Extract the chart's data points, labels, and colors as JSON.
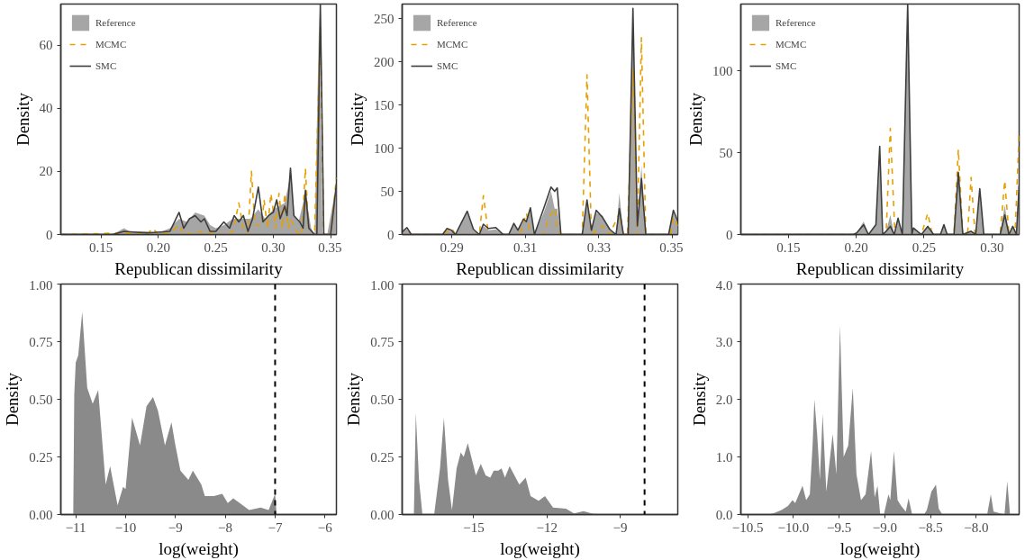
{
  "chart_data": [
    {
      "type": "line",
      "xlabel": "Republican dissimilarity",
      "ylabel": "Density",
      "legend": "top left",
      "xlim": [
        0.115,
        0.355
      ],
      "ylim": [
        0,
        73
      ],
      "xticks": [
        0.15,
        {
          "value": 0.2,
          "label": "0.20"
        },
        0.25,
        {
          "value": 0.3,
          "label": "0.30"
        },
        0.35
      ],
      "yticks": [
        0,
        20,
        40,
        60
      ],
      "series": [
        {
          "name": "Reference",
          "type": "area",
          "color": "#a6a6a6",
          "x": [
            0.115,
            0.16,
            0.17,
            0.175,
            0.19,
            0.2,
            0.21,
            0.218,
            0.225,
            0.232,
            0.24,
            0.245,
            0.25,
            0.257,
            0.265,
            0.27,
            0.28,
            0.287,
            0.293,
            0.3,
            0.305,
            0.31,
            0.315,
            0.318,
            0.322,
            0.328,
            0.333,
            0.336,
            0.34,
            0.343,
            0.347,
            0.352,
            0.355
          ],
          "values": [
            0,
            0,
            2,
            1,
            1,
            0.5,
            2,
            5,
            4,
            7,
            6,
            3,
            2,
            3,
            5,
            5,
            5,
            8,
            5,
            8,
            9,
            10,
            19,
            6,
            4,
            13,
            2,
            0,
            70,
            0,
            0,
            10,
            15
          ]
        },
        {
          "name": "MCMC",
          "type": "line",
          "line_style": "dashed",
          "color": "#e6a000",
          "x": [
            0.115,
            0.17,
            0.19,
            0.195,
            0.2,
            0.21,
            0.218,
            0.222,
            0.24,
            0.255,
            0.265,
            0.27,
            0.274,
            0.278,
            0.281,
            0.284,
            0.29,
            0.292,
            0.295,
            0.298,
            0.302,
            0.305,
            0.308,
            0.31,
            0.313,
            0.315,
            0.32,
            0.325,
            0.328,
            0.331,
            0.336,
            0.341,
            0.344,
            0.35,
            0.355
          ],
          "values": [
            0,
            0.5,
            0,
            2,
            0,
            0.5,
            3,
            0,
            1,
            0,
            1,
            10,
            2,
            0,
            20,
            3,
            3,
            11,
            2,
            13,
            2,
            13,
            2,
            13,
            2,
            5,
            1,
            0,
            21,
            0,
            0,
            66,
            0,
            0,
            18
          ]
        },
        {
          "name": "SMC",
          "type": "line",
          "line_style": "solid",
          "color": "#3d3d3d",
          "x": [
            0.115,
            0.16,
            0.17,
            0.19,
            0.21,
            0.218,
            0.222,
            0.227,
            0.232,
            0.237,
            0.24,
            0.245,
            0.25,
            0.257,
            0.262,
            0.266,
            0.27,
            0.274,
            0.278,
            0.282,
            0.287,
            0.291,
            0.296,
            0.3,
            0.303,
            0.306,
            0.31,
            0.312,
            0.315,
            0.318,
            0.323,
            0.326,
            0.328,
            0.331,
            0.336,
            0.338,
            0.341,
            0.344,
            0.35,
            0.355
          ],
          "values": [
            0,
            0,
            1,
            0.5,
            1,
            7,
            2,
            5,
            6,
            4,
            5,
            1,
            1,
            4,
            2,
            6,
            4,
            6,
            1,
            5,
            15,
            4,
            6,
            7,
            11,
            5,
            9,
            6,
            21,
            6,
            4,
            2,
            14,
            2,
            0,
            0,
            73,
            0,
            0,
            16
          ]
        }
      ]
    },
    {
      "type": "line",
      "xlabel": "Republican dissimilarity",
      "ylabel": "Density",
      "legend": "top left",
      "xlim": [
        0.2765,
        0.3515
      ],
      "ylim": [
        0,
        267
      ],
      "xticks": [
        0.29,
        0.31,
        0.33,
        0.35
      ],
      "yticks": [
        0,
        50,
        100,
        150,
        200,
        250
      ],
      "series": [
        {
          "name": "Reference",
          "type": "area",
          "color": "#a6a6a6",
          "x": [
            0.2765,
            0.2778,
            0.279,
            0.2875,
            0.2887,
            0.2899,
            0.291,
            0.2942,
            0.2959,
            0.2975,
            0.2986,
            0.3,
            0.302,
            0.304,
            0.3055,
            0.3069,
            0.308,
            0.3095,
            0.3103,
            0.3114,
            0.3125,
            0.315,
            0.317,
            0.318,
            0.3187,
            0.3197,
            0.3255,
            0.3268,
            0.328,
            0.3293,
            0.331,
            0.333,
            0.3347,
            0.3356,
            0.3367,
            0.338,
            0.3393,
            0.3405,
            0.3416,
            0.3428,
            0.349,
            0.3503,
            0.3515
          ],
          "values": [
            3,
            6,
            0,
            0,
            5,
            4,
            0,
            25,
            5,
            0,
            10,
            5,
            6,
            0,
            0,
            12,
            5,
            16,
            15,
            28,
            0,
            25,
            50,
            30,
            30,
            0,
            0,
            35,
            5,
            25,
            22,
            5,
            0,
            48,
            0,
            0,
            250,
            10,
            80,
            0,
            0,
            25,
            12
          ]
        },
        {
          "name": "MCMC",
          "type": "line",
          "line_style": "dashed",
          "color": "#e6a000",
          "x": [
            0.2765,
            0.2875,
            0.2899,
            0.291,
            0.2975,
            0.2986,
            0.3,
            0.3085,
            0.3103,
            0.3114,
            0.315,
            0.3165,
            0.318,
            0.3187,
            0.3197,
            0.3255,
            0.3268,
            0.328,
            0.331,
            0.333,
            0.3356,
            0.3367,
            0.3378,
            0.3393,
            0.3405,
            0.3416,
            0.3428,
            0.3495,
            0.3503,
            0.3515
          ],
          "values": [
            0,
            0,
            8,
            0,
            0,
            45,
            0,
            0,
            25,
            0,
            0,
            20,
            30,
            5,
            0,
            0,
            185,
            0,
            10,
            0,
            25,
            0,
            0,
            190,
            0,
            228,
            0,
            0,
            20,
            10
          ]
        },
        {
          "name": "SMC",
          "type": "line",
          "line_style": "solid",
          "color": "#3d3d3d",
          "x": [
            0.2765,
            0.2778,
            0.279,
            0.2875,
            0.2887,
            0.2899,
            0.291,
            0.2942,
            0.2959,
            0.2975,
            0.2986,
            0.3,
            0.302,
            0.304,
            0.3055,
            0.3069,
            0.308,
            0.3095,
            0.3103,
            0.3114,
            0.3125,
            0.315,
            0.317,
            0.318,
            0.3187,
            0.3197,
            0.3255,
            0.3268,
            0.328,
            0.3293,
            0.331,
            0.333,
            0.3347,
            0.3356,
            0.3367,
            0.338,
            0.3393,
            0.3405,
            0.3416,
            0.3428,
            0.349,
            0.3503,
            0.3515
          ],
          "values": [
            3,
            8,
            0,
            0,
            7,
            5,
            0,
            27,
            6,
            0,
            12,
            7,
            8,
            0,
            0,
            13,
            5,
            18,
            15,
            31,
            0,
            30,
            55,
            50,
            54,
            0,
            0,
            40,
            5,
            28,
            20,
            6,
            0,
            30,
            0,
            0,
            262,
            10,
            65,
            0,
            0,
            28,
            15
          ]
        }
      ]
    },
    {
      "type": "line",
      "xlabel": "Republican dissimilarity",
      "ylabel": "Density",
      "legend": "top left",
      "xlim": [
        0.115,
        0.32
      ],
      "ylim": [
        0,
        141
      ],
      "xticks": [
        0.15,
        {
          "value": 0.2,
          "label": "0.20"
        },
        0.25,
        {
          "value": 0.3,
          "label": "0.30"
        }
      ],
      "yticks": [
        0,
        50,
        100
      ],
      "series": [
        {
          "name": "Reference",
          "type": "area",
          "color": "#a6a6a6",
          "x": [
            0.115,
            0.198,
            0.2003,
            0.2055,
            0.209,
            0.2145,
            0.2173,
            0.2195,
            0.222,
            0.2251,
            0.228,
            0.2308,
            0.234,
            0.2379,
            0.241,
            0.2421,
            0.248,
            0.2527,
            0.257,
            0.262,
            0.2646,
            0.267,
            0.272,
            0.2752,
            0.2785,
            0.2846,
            0.288,
            0.291,
            0.294,
            0.306,
            0.3094,
            0.3125,
            0.3153,
            0.318,
            0.32
          ],
          "values": [
            0,
            0,
            1,
            8,
            0,
            6,
            45,
            0,
            2,
            12,
            0,
            10,
            0,
            140,
            0,
            4,
            0,
            5,
            0,
            0,
            6,
            0,
            0,
            40,
            0,
            2,
            0,
            25,
            0,
            0,
            18,
            0,
            5,
            0,
            25
          ]
        },
        {
          "name": "MCMC",
          "type": "line",
          "line_style": "dashed",
          "color": "#e6a000",
          "x": [
            0.115,
            0.222,
            0.2251,
            0.2285,
            0.248,
            0.2527,
            0.256,
            0.272,
            0.2752,
            0.2785,
            0.282,
            0.2846,
            0.2875,
            0.306,
            0.3094,
            0.3125,
            0.317,
            0.32
          ],
          "values": [
            0,
            0,
            65,
            0,
            0,
            13,
            0,
            0,
            52,
            0,
            0,
            35,
            0,
            0,
            33,
            0,
            0,
            62
          ]
        },
        {
          "name": "SMC",
          "type": "line",
          "line_style": "solid",
          "color": "#3d3d3d",
          "x": [
            0.115,
            0.198,
            0.2003,
            0.2055,
            0.209,
            0.2145,
            0.2173,
            0.2195,
            0.222,
            0.2251,
            0.228,
            0.2308,
            0.234,
            0.2379,
            0.241,
            0.2421,
            0.248,
            0.2527,
            0.257,
            0.262,
            0.2646,
            0.267,
            0.272,
            0.2752,
            0.2785,
            0.2846,
            0.288,
            0.291,
            0.294,
            0.306,
            0.3094,
            0.3125,
            0.3153,
            0.318,
            0.32
          ],
          "values": [
            0,
            0,
            1,
            6,
            0,
            6,
            54,
            0,
            2,
            5,
            0,
            10,
            0,
            141,
            0,
            4,
            0,
            5,
            0,
            0,
            6,
            0,
            0,
            38,
            0,
            2,
            0,
            28,
            0,
            0,
            12,
            0,
            5,
            0,
            30
          ]
        }
      ]
    },
    {
      "type": "area",
      "xlabel": "log(weight)",
      "ylabel": "Density",
      "color": "#8a8a8a",
      "xlim": [
        -11.3,
        -5.77
      ],
      "ylim": [
        0,
        1
      ],
      "xticks": [
        {
          "value": -11,
          "label": "−11"
        },
        {
          "value": -10,
          "label": "−10"
        },
        {
          "value": -9,
          "label": "−9"
        },
        {
          "value": -8,
          "label": "−8"
        },
        {
          "value": -7,
          "label": "−7"
        },
        {
          "value": -6,
          "label": "−6"
        }
      ],
      "yticks": [
        {
          "value": 0,
          "label": "0.00"
        },
        0.25,
        {
          "value": 0.5,
          "label": "0.50"
        },
        0.75,
        {
          "value": 1,
          "label": "1.00"
        }
      ],
      "x": [
        -11.05,
        -11.03,
        -11.0,
        -10.95,
        -10.87,
        -10.77,
        -10.66,
        -10.55,
        -10.48,
        -10.4,
        -10.31,
        -10.24,
        -10.16,
        -10.05,
        -10.0,
        -9.87,
        -9.71,
        -9.58,
        -9.45,
        -9.35,
        -9.21,
        -9.08,
        -9.0,
        -8.9,
        -8.74,
        -8.65,
        -8.48,
        -8.41,
        -8.23,
        -8.06,
        -7.95,
        -7.84,
        -7.71,
        -7.52,
        -7.29,
        -7.13,
        -7.0,
        -6.97
      ],
      "values": [
        0,
        0.52,
        0.66,
        0.69,
        0.88,
        0.55,
        0.48,
        0.54,
        0.35,
        0.13,
        0.21,
        0.13,
        0.04,
        0.12,
        0.11,
        0.42,
        0.3,
        0.47,
        0.51,
        0.45,
        0.3,
        0.4,
        0.3,
        0.19,
        0.15,
        0.19,
        0.13,
        0.08,
        0.08,
        0.09,
        0.05,
        0.07,
        0.05,
        0.02,
        0.03,
        0.02,
        0.09,
        0
      ],
      "ref_lines": [
        {
          "axis": "x",
          "value": -7,
          "line_style": "dashed",
          "color": "#000000"
        }
      ]
    },
    {
      "type": "area",
      "xlabel": "log(weight)",
      "ylabel": "Density",
      "color": "#8a8a8a",
      "xlim": [
        -17.93,
        -6.64
      ],
      "ylim": [
        0,
        1
      ],
      "xticks": [
        {
          "value": -15,
          "label": "−15"
        },
        {
          "value": -12,
          "label": "−12"
        },
        {
          "value": -9,
          "label": "−9"
        }
      ],
      "yticks": [
        {
          "value": 0,
          "label": "0.00"
        },
        0.25,
        {
          "value": 0.5,
          "label": "0.50"
        },
        0.75,
        {
          "value": 1,
          "label": "1.00"
        }
      ],
      "x": [
        -17.45,
        -17.37,
        -17.24,
        -17.1,
        -16.62,
        -16.38,
        -16.22,
        -16.05,
        -15.89,
        -15.7,
        -15.53,
        -15.41,
        -15.24,
        -14.91,
        -14.71,
        -14.51,
        -14.32,
        -14.18,
        -13.99,
        -13.86,
        -13.72,
        -13.53,
        -13.33,
        -13.13,
        -12.87,
        -12.67,
        -12.34,
        -12.08,
        -11.75,
        -11.22,
        -10.89,
        -10.5,
        -10.1,
        -9.45,
        -8.13
      ],
      "values": [
        0,
        0.44,
        0.15,
        0,
        0,
        0.2,
        0.42,
        0.15,
        0.02,
        0.2,
        0.27,
        0.25,
        0.31,
        0.17,
        0.22,
        0.17,
        0.16,
        0.19,
        0.19,
        0.2,
        0.16,
        0.21,
        0.17,
        0.13,
        0.16,
        0.08,
        0.06,
        0.08,
        0.03,
        0.025,
        0.005,
        0.015,
        0.003,
        0,
        0
      ],
      "ref_lines": [
        {
          "axis": "x",
          "value": -8,
          "line_style": "dashed",
          "color": "#000000"
        }
      ]
    },
    {
      "type": "area",
      "xlabel": "log(weight)",
      "ylabel": "Density",
      "color": "#8a8a8a",
      "xlim": [
        -10.575,
        -7.53
      ],
      "ylim": [
        0,
        4
      ],
      "xticks": [
        {
          "value": -10.5,
          "label": "−10.5"
        },
        {
          "value": -10,
          "label": "−10.0"
        },
        {
          "value": -9.5,
          "label": "−9.5"
        },
        {
          "value": -9,
          "label": "−9.0"
        },
        {
          "value": -8.5,
          "label": "−8.5"
        },
        {
          "value": -8,
          "label": "−8.0"
        }
      ],
      "yticks": [
        {
          "value": 0,
          "label": "0.0"
        },
        {
          "value": 1,
          "label": "1.0"
        },
        {
          "value": 2,
          "label": "2.0"
        },
        {
          "value": 3,
          "label": "3.0"
        },
        {
          "value": 4,
          "label": "4.0"
        }
      ],
      "x": [
        -10.27,
        -10.22,
        -10.13,
        -10.06,
        -10.01,
        -9.98,
        -9.9,
        -9.86,
        -9.82,
        -9.79,
        -9.77,
        -9.74,
        -9.71,
        -9.68,
        -9.64,
        -9.57,
        -9.53,
        -9.49,
        -9.45,
        -9.4,
        -9.35,
        -9.31,
        -9.26,
        -9.21,
        -9.15,
        -9.11,
        -9.08,
        -9.05,
        -9.01,
        -8.96,
        -8.94,
        -8.9,
        -8.86,
        -8.82,
        -8.77,
        -8.74,
        -8.7,
        -8.57,
        -8.54,
        -8.49,
        -8.44,
        -8.41,
        -8.37,
        -7.88,
        -7.84,
        -7.81,
        -7.69,
        -7.66,
        -7.63,
        -7.53
      ],
      "values": [
        0,
        0.02,
        0.08,
        0.15,
        0.25,
        0.2,
        0.5,
        0.25,
        0.35,
        1.2,
        2.0,
        1.4,
        0.6,
        1.75,
        0.4,
        1.4,
        0.7,
        3.28,
        1.0,
        1.2,
        2.2,
        0.7,
        0.25,
        0.35,
        1.1,
        0.3,
        0.5,
        0,
        0,
        0.35,
        0.25,
        1.1,
        0.25,
        0.15,
        0.05,
        0.28,
        0,
        0,
        0.08,
        0.4,
        0.52,
        0.1,
        0,
        0,
        0.35,
        0.05,
        0,
        0.58,
        0,
        0
      ]
    }
  ]
}
